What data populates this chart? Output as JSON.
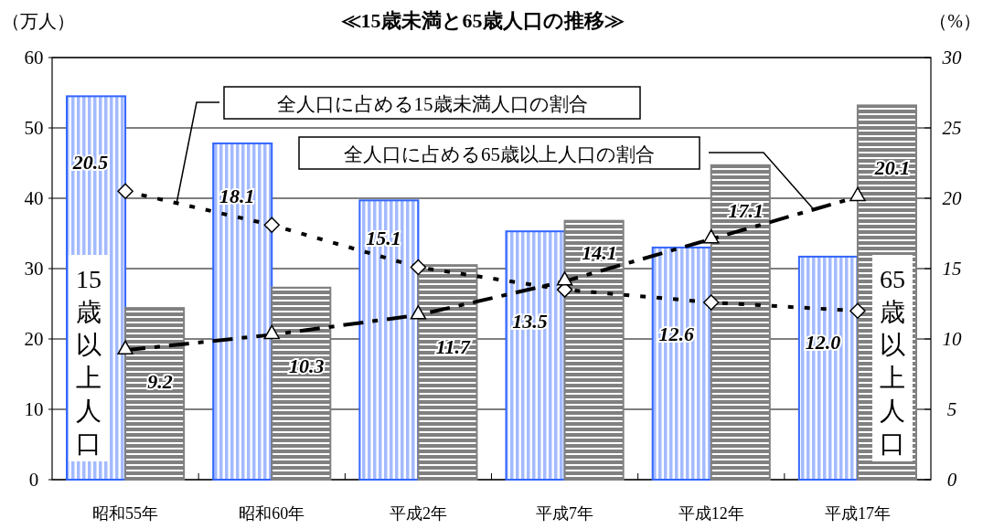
{
  "chart_data": {
    "type": "bar",
    "title": "≪15歳未満と65歳人口の推移≫",
    "ylabel": "（万人）",
    "y2label": "（%）",
    "categories": [
      "昭和55年",
      "昭和60年",
      "平成2年",
      "平成7年",
      "平成12年",
      "平成17年"
    ],
    "ylim": [
      0,
      60
    ],
    "yticks": [
      0,
      10,
      20,
      30,
      40,
      50,
      60
    ],
    "y2lim": [
      0,
      30
    ],
    "y2ticks": [
      0,
      5,
      10,
      15,
      20,
      25,
      30
    ],
    "grid": "y",
    "series": [
      {
        "name": "15歳以上人口",
        "color": "#3366ff",
        "values": [
          54.5,
          47.8,
          39.7,
          35.3,
          33.0,
          31.7
        ]
      },
      {
        "name": "65歳以上人口",
        "color": "#808080",
        "values": [
          24.4,
          27.3,
          30.5,
          36.8,
          44.7,
          53.2
        ]
      },
      {
        "name": "全人口に占める15歳未満人口の割合",
        "type": "line",
        "axis": "y2",
        "color": "#000000",
        "marker": "diamond",
        "line_style": "dotted",
        "values": [
          20.5,
          18.1,
          15.1,
          13.5,
          12.6,
          12.0
        ],
        "value_labels": [
          "20.5",
          "18.1",
          "15.1",
          "13.5",
          "12.6",
          "12.0"
        ]
      },
      {
        "name": "全人口に占める65歳以上人口の割合",
        "type": "line",
        "axis": "y2",
        "color": "#000000",
        "marker": "triangle",
        "line_style": "dashed",
        "values": [
          9.2,
          10.3,
          11.7,
          14.1,
          17.1,
          20.1
        ],
        "value_labels": [
          "9.2",
          "10.3",
          "11.7",
          "14.1",
          "17.1",
          "20.1"
        ]
      }
    ]
  }
}
